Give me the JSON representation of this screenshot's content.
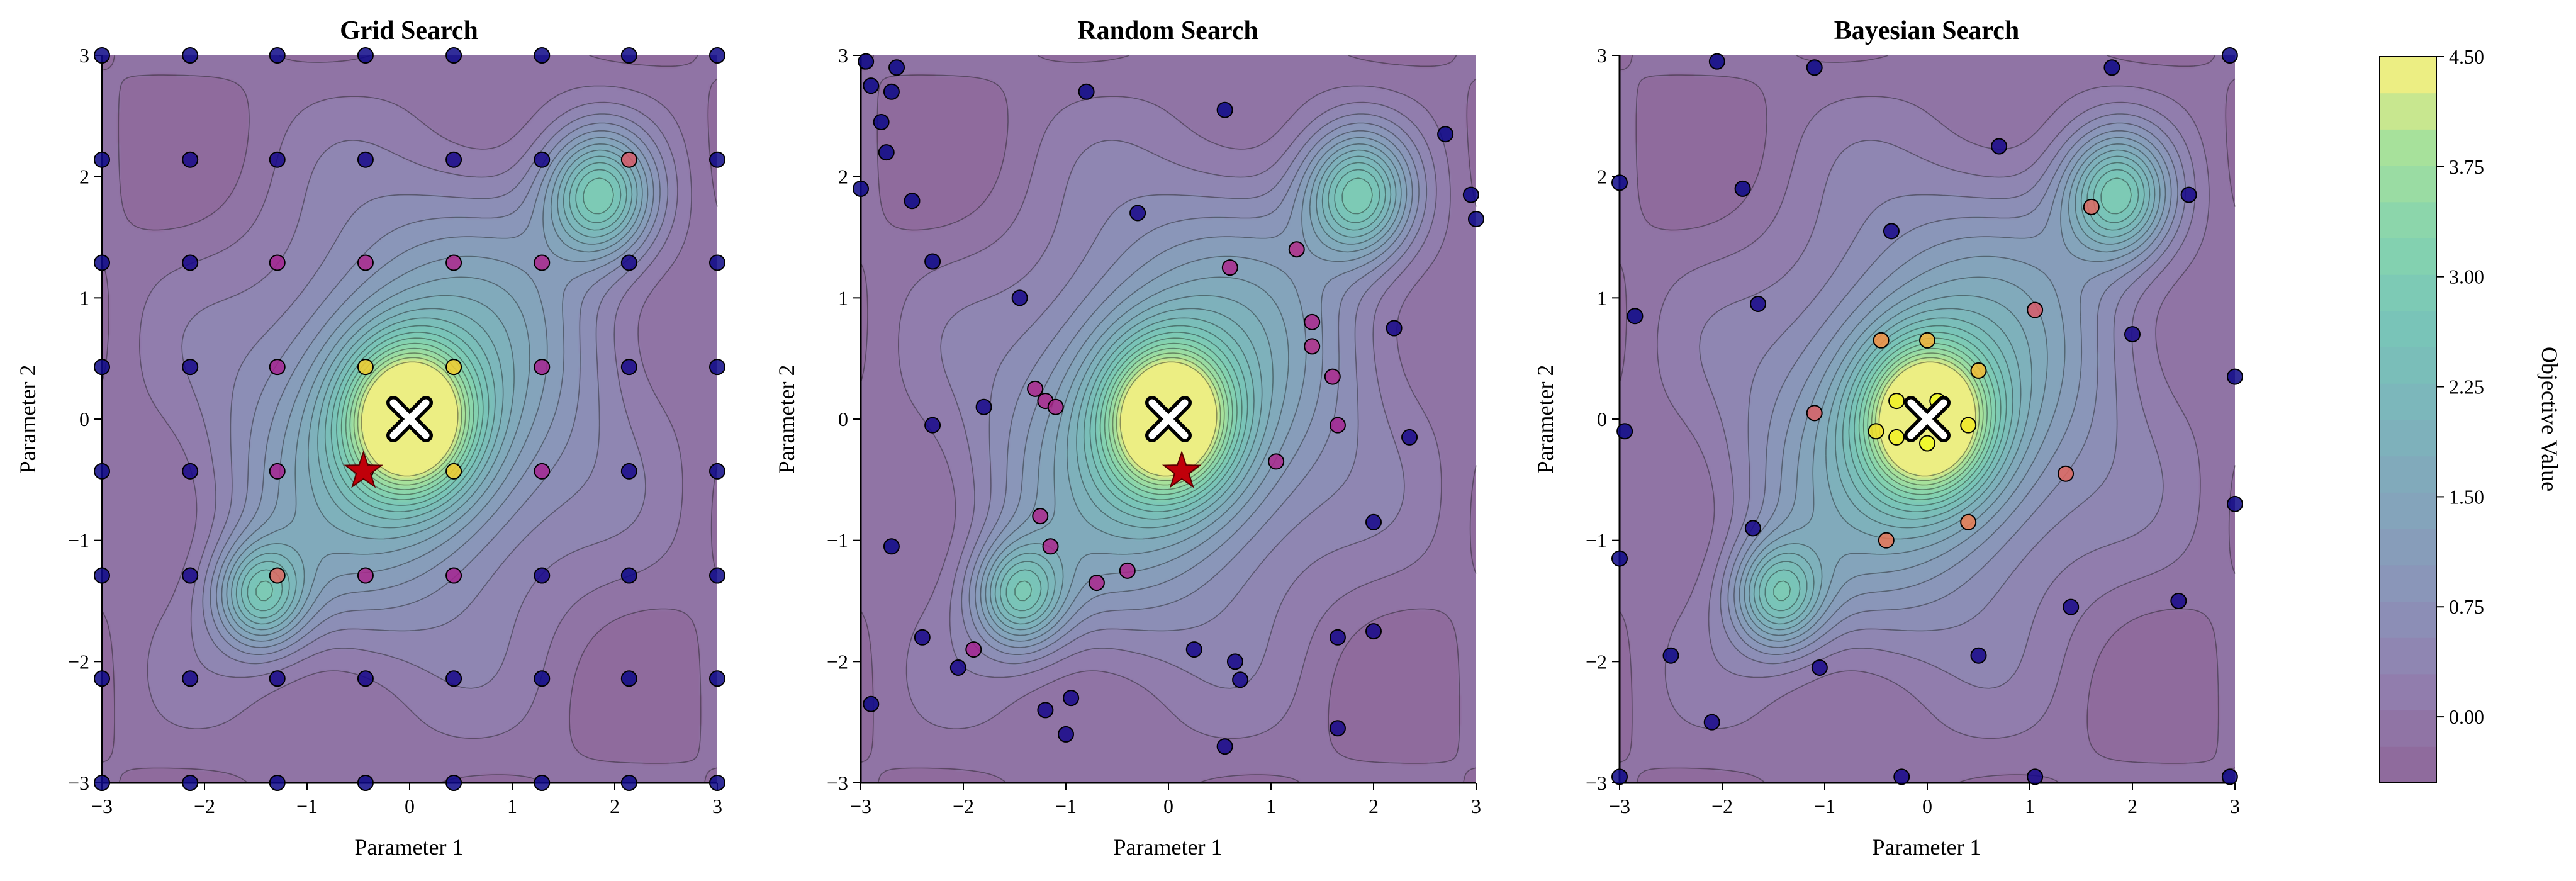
{
  "chart_data": [
    {
      "type": "scatter",
      "title": "Grid Search",
      "xlabel": "Parameter 1",
      "ylabel": "Parameter 2",
      "xlim": [
        -3,
        3
      ],
      "ylim": [
        -3,
        3
      ],
      "xticks": [
        "−3",
        "−2",
        "−1",
        "0",
        "1",
        "2",
        "3"
      ],
      "yticks": [
        "−3",
        "−2",
        "−1",
        "0",
        "1",
        "2",
        "3"
      ],
      "background": "contour of objective function",
      "points": [
        {
          "x": -3.0,
          "y": -3.0,
          "v": -0.2
        },
        {
          "x": -2.14,
          "y": -3.0,
          "v": -0.2
        },
        {
          "x": -1.29,
          "y": -3.0,
          "v": -0.2
        },
        {
          "x": -0.43,
          "y": -3.0,
          "v": -0.2
        },
        {
          "x": 0.43,
          "y": -3.0,
          "v": -0.2
        },
        {
          "x": 1.29,
          "y": -3.0,
          "v": -0.2
        },
        {
          "x": 2.14,
          "y": -3.0,
          "v": -0.2
        },
        {
          "x": 3.0,
          "y": -3.0,
          "v": -0.2
        },
        {
          "x": -3.0,
          "y": -2.14,
          "v": -0.2
        },
        {
          "x": -2.14,
          "y": -2.14,
          "v": -0.1
        },
        {
          "x": -1.29,
          "y": -2.14,
          "v": -0.1
        },
        {
          "x": -0.43,
          "y": -2.14,
          "v": -0.1
        },
        {
          "x": 0.43,
          "y": -2.14,
          "v": -0.1
        },
        {
          "x": 1.29,
          "y": -2.14,
          "v": -0.2
        },
        {
          "x": 2.14,
          "y": -2.14,
          "v": -0.2
        },
        {
          "x": 3.0,
          "y": -2.14,
          "v": -0.2
        },
        {
          "x": -3.0,
          "y": -1.29,
          "v": -0.2
        },
        {
          "x": -2.14,
          "y": -1.29,
          "v": -0.1
        },
        {
          "x": -1.29,
          "y": -1.29,
          "v": 2.6
        },
        {
          "x": -0.43,
          "y": -1.29,
          "v": 1.6
        },
        {
          "x": 0.43,
          "y": -1.29,
          "v": 1.5
        },
        {
          "x": 1.29,
          "y": -1.29,
          "v": -0.1
        },
        {
          "x": 2.14,
          "y": -1.29,
          "v": -0.2
        },
        {
          "x": 3.0,
          "y": -1.29,
          "v": -0.2
        },
        {
          "x": -3.0,
          "y": -0.43,
          "v": -0.2
        },
        {
          "x": -2.14,
          "y": -0.43,
          "v": -0.1
        },
        {
          "x": -1.29,
          "y": -0.43,
          "v": 1.5
        },
        {
          "x": -0.43,
          "y": -0.43,
          "v": 3.9
        },
        {
          "x": 0.43,
          "y": -0.43,
          "v": 3.9
        },
        {
          "x": 1.29,
          "y": -0.43,
          "v": 1.5
        },
        {
          "x": 2.14,
          "y": -0.43,
          "v": -0.1
        },
        {
          "x": 3.0,
          "y": -0.43,
          "v": -0.2
        },
        {
          "x": -3.0,
          "y": 0.43,
          "v": -0.2
        },
        {
          "x": -2.14,
          "y": 0.43,
          "v": -0.1
        },
        {
          "x": -1.29,
          "y": 0.43,
          "v": 1.5
        },
        {
          "x": -0.43,
          "y": 0.43,
          "v": 3.9
        },
        {
          "x": 0.43,
          "y": 0.43,
          "v": 3.9
        },
        {
          "x": 1.29,
          "y": 0.43,
          "v": 1.5
        },
        {
          "x": 2.14,
          "y": 0.43,
          "v": -0.1
        },
        {
          "x": 3.0,
          "y": 0.43,
          "v": -0.2
        },
        {
          "x": -3.0,
          "y": 1.29,
          "v": -0.2
        },
        {
          "x": -2.14,
          "y": 1.29,
          "v": -0.1
        },
        {
          "x": -1.29,
          "y": 1.29,
          "v": 1.5
        },
        {
          "x": -0.43,
          "y": 1.29,
          "v": 1.6
        },
        {
          "x": 0.43,
          "y": 1.29,
          "v": 1.6
        },
        {
          "x": 1.29,
          "y": 1.29,
          "v": 1.6
        },
        {
          "x": 2.14,
          "y": 1.29,
          "v": -0.1
        },
        {
          "x": 3.0,
          "y": 1.29,
          "v": -0.2
        },
        {
          "x": -3.0,
          "y": 2.14,
          "v": -0.2
        },
        {
          "x": -2.14,
          "y": 2.14,
          "v": -0.1
        },
        {
          "x": -1.29,
          "y": 2.14,
          "v": -0.1
        },
        {
          "x": -0.43,
          "y": 2.14,
          "v": -0.1
        },
        {
          "x": 0.43,
          "y": 2.14,
          "v": -0.1
        },
        {
          "x": 1.29,
          "y": 2.14,
          "v": -0.1
        },
        {
          "x": 2.14,
          "y": 2.14,
          "v": 2.4
        },
        {
          "x": 3.0,
          "y": 2.14,
          "v": -0.2
        },
        {
          "x": -3.0,
          "y": 3.0,
          "v": -0.2
        },
        {
          "x": -2.14,
          "y": 3.0,
          "v": -0.2
        },
        {
          "x": -1.29,
          "y": 3.0,
          "v": -0.2
        },
        {
          "x": -0.43,
          "y": 3.0,
          "v": -0.2
        },
        {
          "x": 0.43,
          "y": 3.0,
          "v": -0.2
        },
        {
          "x": 1.29,
          "y": 3.0,
          "v": -0.2
        },
        {
          "x": 2.14,
          "y": 3.0,
          "v": -0.2
        },
        {
          "x": 3.0,
          "y": 3.0,
          "v": -0.2
        }
      ],
      "best_found": {
        "x": -0.45,
        "y": -0.43
      },
      "true_optimum": {
        "x": 0.0,
        "y": 0.0
      }
    },
    {
      "type": "scatter",
      "title": "Random Search",
      "xlabel": "Parameter 1",
      "ylabel": "Parameter 2",
      "xlim": [
        -3,
        3
      ],
      "ylim": [
        -3,
        3
      ],
      "xticks": [
        "−3",
        "−2",
        "−1",
        "0",
        "1",
        "2",
        "3"
      ],
      "yticks": [
        "−3",
        "−2",
        "−1",
        "0",
        "1",
        "2",
        "3"
      ],
      "background": "contour of objective function",
      "points": [
        {
          "x": -2.95,
          "y": 2.95,
          "v": -0.2
        },
        {
          "x": -3.0,
          "y": 1.9,
          "v": -0.2
        },
        {
          "x": -2.9,
          "y": 2.75,
          "v": -0.2
        },
        {
          "x": -2.65,
          "y": 2.9,
          "v": -0.2
        },
        {
          "x": -2.7,
          "y": 2.7,
          "v": -0.2
        },
        {
          "x": -2.8,
          "y": 2.45,
          "v": -0.2
        },
        {
          "x": -2.75,
          "y": 2.2,
          "v": -0.2
        },
        {
          "x": -2.5,
          "y": 1.8,
          "v": -0.2
        },
        {
          "x": -2.3,
          "y": 1.3,
          "v": -0.2
        },
        {
          "x": -0.8,
          "y": 2.7,
          "v": -0.2
        },
        {
          "x": 0.55,
          "y": 2.55,
          "v": -0.2
        },
        {
          "x": 2.7,
          "y": 2.35,
          "v": -0.2
        },
        {
          "x": 2.95,
          "y": 1.85,
          "v": -0.2
        },
        {
          "x": 3.0,
          "y": 1.65,
          "v": -0.2
        },
        {
          "x": -0.3,
          "y": 1.7,
          "v": -0.1
        },
        {
          "x": 0.6,
          "y": 1.25,
          "v": 1.6
        },
        {
          "x": 1.25,
          "y": 1.4,
          "v": 1.7
        },
        {
          "x": 1.4,
          "y": 0.8,
          "v": 1.6
        },
        {
          "x": 1.4,
          "y": 0.6,
          "v": 1.7
        },
        {
          "x": 1.6,
          "y": 0.35,
          "v": 1.6
        },
        {
          "x": 1.65,
          "y": -0.05,
          "v": 1.5
        },
        {
          "x": 2.2,
          "y": 0.75,
          "v": -0.1
        },
        {
          "x": 2.35,
          "y": -0.15,
          "v": -0.1
        },
        {
          "x": -1.45,
          "y": 1.0,
          "v": -0.1
        },
        {
          "x": -1.8,
          "y": 0.1,
          "v": -0.1
        },
        {
          "x": -2.3,
          "y": -0.05,
          "v": -0.1
        },
        {
          "x": -1.3,
          "y": 0.25,
          "v": 1.6
        },
        {
          "x": -1.2,
          "y": 0.15,
          "v": 1.6
        },
        {
          "x": -1.1,
          "y": 0.1,
          "v": 1.6
        },
        {
          "x": -1.25,
          "y": -0.8,
          "v": 1.6
        },
        {
          "x": -1.15,
          "y": -1.05,
          "v": 1.6
        },
        {
          "x": -0.7,
          "y": -1.35,
          "v": 1.6
        },
        {
          "x": -0.4,
          "y": -1.25,
          "v": 1.6
        },
        {
          "x": 1.05,
          "y": -0.35,
          "v": 1.6
        },
        {
          "x": 2.0,
          "y": -0.85,
          "v": -0.1
        },
        {
          "x": 2.0,
          "y": -1.75,
          "v": -0.1
        },
        {
          "x": 1.65,
          "y": -1.8,
          "v": -0.1
        },
        {
          "x": -2.7,
          "y": -1.05,
          "v": -0.2
        },
        {
          "x": -2.4,
          "y": -1.8,
          "v": -0.1
        },
        {
          "x": -2.05,
          "y": -2.05,
          "v": -0.1
        },
        {
          "x": -1.9,
          "y": -1.9,
          "v": 1.5
        },
        {
          "x": -2.9,
          "y": -2.35,
          "v": -0.2
        },
        {
          "x": -1.2,
          "y": -2.4,
          "v": -0.1
        },
        {
          "x": -0.95,
          "y": -2.3,
          "v": -0.1
        },
        {
          "x": -1.0,
          "y": -2.6,
          "v": -0.1
        },
        {
          "x": 0.25,
          "y": -1.9,
          "v": -0.1
        },
        {
          "x": 0.65,
          "y": -2.0,
          "v": -0.1
        },
        {
          "x": 0.7,
          "y": -2.15,
          "v": -0.1
        },
        {
          "x": 0.55,
          "y": -2.7,
          "v": -0.1
        },
        {
          "x": 1.65,
          "y": -2.55,
          "v": -0.1
        }
      ],
      "best_found": {
        "x": 0.13,
        "y": -0.43
      },
      "true_optimum": {
        "x": 0.0,
        "y": 0.0
      }
    },
    {
      "type": "scatter",
      "title": "Bayesian Search",
      "xlabel": "Parameter 1",
      "ylabel": "Parameter 2",
      "xlim": [
        -3,
        3
      ],
      "ylim": [
        -3,
        3
      ],
      "xticks": [
        "−3",
        "−2",
        "−1",
        "0",
        "1",
        "2",
        "3"
      ],
      "yticks": [
        "−3",
        "−2",
        "−1",
        "0",
        "1",
        "2",
        "3"
      ],
      "background": "contour of objective function",
      "points": [
        {
          "x": -3.0,
          "y": 1.95,
          "v": -0.2
        },
        {
          "x": -2.05,
          "y": 2.95,
          "v": -0.2
        },
        {
          "x": -1.1,
          "y": 2.9,
          "v": -0.2
        },
        {
          "x": -1.8,
          "y": 1.9,
          "v": -0.2
        },
        {
          "x": -2.85,
          "y": 0.85,
          "v": -0.2
        },
        {
          "x": -2.95,
          "y": -0.1,
          "v": -0.2
        },
        {
          "x": -3.0,
          "y": -1.15,
          "v": -0.2
        },
        {
          "x": -2.5,
          "y": -1.95,
          "v": -0.2
        },
        {
          "x": -2.1,
          "y": -2.5,
          "v": -0.1
        },
        {
          "x": -3.0,
          "y": -2.95,
          "v": -0.2
        },
        {
          "x": -0.25,
          "y": -2.95,
          "v": -0.1
        },
        {
          "x": 1.05,
          "y": -2.95,
          "v": -0.1
        },
        {
          "x": 2.95,
          "y": -2.95,
          "v": -0.2
        },
        {
          "x": -1.05,
          "y": -2.05,
          "v": -0.1
        },
        {
          "x": 0.5,
          "y": -1.95,
          "v": -0.1
        },
        {
          "x": 1.4,
          "y": -1.55,
          "v": -0.1
        },
        {
          "x": 2.45,
          "y": -1.5,
          "v": -0.1
        },
        {
          "x": 3.0,
          "y": -0.7,
          "v": -0.2
        },
        {
          "x": 3.0,
          "y": 0.35,
          "v": -0.2
        },
        {
          "x": 2.0,
          "y": 0.7,
          "v": -0.1
        },
        {
          "x": 2.55,
          "y": 1.85,
          "v": -0.1
        },
        {
          "x": 1.8,
          "y": 2.9,
          "v": -0.2
        },
        {
          "x": 2.95,
          "y": 3.0,
          "v": -0.2
        },
        {
          "x": 0.7,
          "y": 2.25,
          "v": -0.1
        },
        {
          "x": -0.35,
          "y": 1.55,
          "v": -0.1
        },
        {
          "x": -1.65,
          "y": 0.95,
          "v": -0.1
        },
        {
          "x": -1.7,
          "y": -0.9,
          "v": -0.1
        },
        {
          "x": 1.6,
          "y": 1.75,
          "v": 2.6
        },
        {
          "x": 1.05,
          "y": 0.9,
          "v": 2.4
        },
        {
          "x": -0.45,
          "y": 0.65,
          "v": 3.2
        },
        {
          "x": 0.0,
          "y": 0.65,
          "v": 3.6
        },
        {
          "x": 0.5,
          "y": 0.4,
          "v": 3.7
        },
        {
          "x": -1.1,
          "y": 0.05,
          "v": 2.5
        },
        {
          "x": -0.3,
          "y": 0.15,
          "v": 4.3
        },
        {
          "x": 0.1,
          "y": 0.15,
          "v": 4.4
        },
        {
          "x": -0.5,
          "y": -0.1,
          "v": 4.1
        },
        {
          "x": -0.3,
          "y": -0.15,
          "v": 4.3
        },
        {
          "x": 0.0,
          "y": -0.2,
          "v": 4.4
        },
        {
          "x": 0.4,
          "y": -0.05,
          "v": 4.2
        },
        {
          "x": -0.4,
          "y": -1.0,
          "v": 2.8
        },
        {
          "x": 0.4,
          "y": -0.85,
          "v": 2.9
        },
        {
          "x": 1.35,
          "y": -0.45,
          "v": 2.6
        }
      ],
      "true_optimum": {
        "x": 0.0,
        "y": 0.0
      }
    }
  ],
  "colorbar": {
    "label": "Objective Value",
    "vmin": -0.45,
    "vmax": 4.5,
    "ticks": [
      "0.00",
      "0.75",
      "1.50",
      "2.25",
      "3.00",
      "3.75",
      "4.50"
    ],
    "tick_values": [
      0.0,
      0.75,
      1.5,
      2.25,
      3.0,
      3.75,
      4.5
    ],
    "colormap": "viridis"
  }
}
